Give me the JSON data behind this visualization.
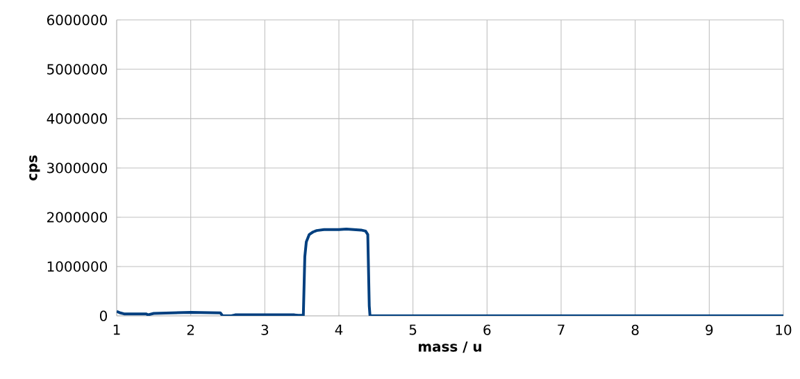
{
  "chart_data": {
    "type": "line",
    "xlabel": "mass / u",
    "ylabel": "cps",
    "xlim": [
      1,
      10
    ],
    "xticks": [
      1,
      2,
      3,
      4,
      5,
      6,
      7,
      8,
      9,
      10
    ],
    "ylim": [
      0,
      6000000
    ],
    "yticks": [
      0,
      1000000,
      2000000,
      3000000,
      4000000,
      5000000,
      6000000
    ],
    "grid": true,
    "marker": "none",
    "line_style": "solid",
    "series": [
      {
        "color": "#003f7f",
        "x": [
          1.0,
          1.05,
          1.1,
          1.4,
          1.42,
          1.5,
          2.0,
          2.4,
          2.43,
          2.55,
          2.6,
          3.0,
          3.4,
          3.45,
          3.52,
          3.54,
          3.56,
          3.6,
          3.65,
          3.7,
          3.8,
          4.0,
          4.1,
          4.2,
          4.3,
          4.36,
          4.39,
          4.41,
          4.42,
          5.0,
          10.0
        ],
        "values": [
          90000,
          60000,
          40000,
          40000,
          20000,
          50000,
          70000,
          60000,
          0,
          0,
          20000,
          20000,
          20000,
          10000,
          10000,
          1200000,
          1500000,
          1650000,
          1700000,
          1730000,
          1750000,
          1750000,
          1760000,
          1750000,
          1740000,
          1720000,
          1650000,
          200000,
          0,
          0,
          0
        ]
      }
    ]
  }
}
